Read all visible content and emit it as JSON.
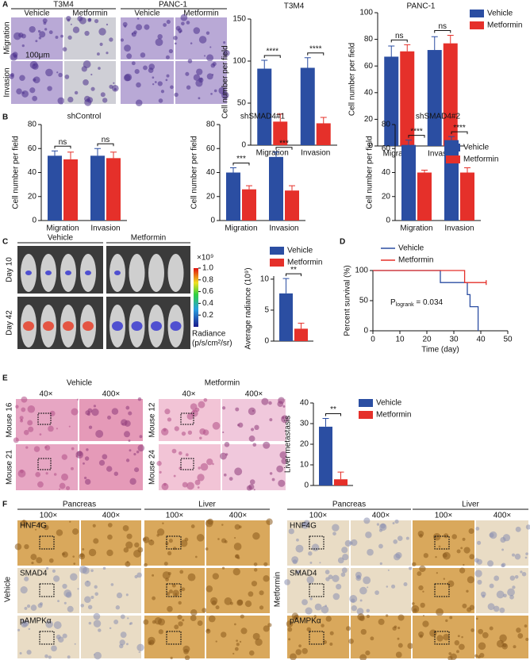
{
  "chart_data": [
    {
      "type": "bar",
      "title": "T3M4",
      "ylabel": "Cell number per field",
      "categories": [
        "Migration",
        "Invasion"
      ],
      "series": [
        {
          "name": "Vehicle",
          "color": "#2b4ea2",
          "values": [
            91,
            92
          ],
          "errors": [
            10,
            12
          ]
        },
        {
          "name": "Metformin",
          "color": "#e5302a",
          "values": [
            28,
            26
          ],
          "errors": [
            9,
            7
          ]
        }
      ],
      "ylim": [
        0,
        150
      ],
      "yticks": [
        0,
        50,
        100,
        150
      ],
      "significance": [
        "****",
        "****"
      ],
      "legend": false
    },
    {
      "type": "bar",
      "title": "PANC-1",
      "ylabel": "Cell number per field",
      "categories": [
        "Migration",
        "Invasion"
      ],
      "series": [
        {
          "name": "Vehicle",
          "color": "#2b4ea2",
          "values": [
            67,
            72
          ],
          "errors": [
            8,
            10
          ]
        },
        {
          "name": "Metformin",
          "color": "#e5302a",
          "values": [
            71,
            77
          ],
          "errors": [
            5,
            6
          ]
        }
      ],
      "ylim": [
        0,
        100
      ],
      "yticks": [
        0,
        20,
        40,
        60,
        80,
        100
      ],
      "significance": [
        "ns",
        "ns"
      ],
      "legend": true
    },
    {
      "type": "bar",
      "title": "shControl",
      "ylabel": "Cell number per field",
      "categories": [
        "Migration",
        "Invasion"
      ],
      "series": [
        {
          "name": "Vehicle",
          "color": "#2b4ea2",
          "values": [
            54,
            54
          ],
          "errors": [
            4,
            6
          ]
        },
        {
          "name": "Metformin",
          "color": "#e5302a",
          "values": [
            51,
            52
          ],
          "errors": [
            6,
            5
          ]
        }
      ],
      "ylim": [
        0,
        80
      ],
      "yticks": [
        0,
        20,
        40,
        60,
        80
      ],
      "significance": [
        "ns",
        "ns"
      ],
      "legend": false
    },
    {
      "type": "bar",
      "title": "shSMAD4#1",
      "ylabel": "Cell number per field",
      "categories": [
        "Migration",
        "Invasion"
      ],
      "series": [
        {
          "name": "Vehicle",
          "color": "#2b4ea2",
          "values": [
            40,
            53
          ],
          "errors": [
            4,
            4
          ]
        },
        {
          "name": "Metformin",
          "color": "#e5302a",
          "values": [
            26,
            25
          ],
          "errors": [
            3,
            4
          ]
        }
      ],
      "ylim": [
        0,
        80
      ],
      "yticks": [
        0,
        20,
        40,
        60,
        80
      ],
      "significance": [
        "***",
        "***"
      ],
      "legend": false
    },
    {
      "type": "bar",
      "title": "shSMAD4#2",
      "ylabel": "Cell number per field",
      "categories": [
        "Migration",
        "Invasion"
      ],
      "series": [
        {
          "name": "Vehicle",
          "color": "#2b4ea2",
          "values": [
            63,
            67
          ],
          "errors": [
            4,
            3
          ]
        },
        {
          "name": "Metformin",
          "color": "#e5302a",
          "values": [
            40,
            40
          ],
          "errors": [
            2,
            4
          ]
        }
      ],
      "ylim": [
        0,
        80
      ],
      "yticks": [
        0,
        20,
        40,
        60,
        80
      ],
      "significance": [
        "****",
        "****"
      ],
      "legend": true
    },
    {
      "type": "bar",
      "ylabel": "Average radiance (10⁹)",
      "categories": [
        null
      ],
      "series": [
        {
          "name": "Vehicle",
          "color": "#2b4ea2",
          "values": [
            7.7
          ],
          "errors": [
            2.4
          ]
        },
        {
          "name": "Metformin",
          "color": "#e5302a",
          "values": [
            2.0
          ],
          "errors": [
            0.9
          ]
        }
      ],
      "ylim": [
        0,
        10.5
      ],
      "yticks": [
        0,
        5,
        10
      ],
      "significance": [
        "**"
      ],
      "legend": true
    },
    {
      "type": "line",
      "xlabel": "Time (day)",
      "ylabel": "Percent survival (%)",
      "series": [
        {
          "name": "Vehicle",
          "color": "#2b4ea2",
          "x": [
            0,
            25,
            25,
            35,
            35,
            36,
            36,
            39,
            39
          ],
          "y": [
            100,
            100,
            80,
            80,
            60,
            60,
            40,
            40,
            0
          ]
        },
        {
          "name": "Metformin",
          "color": "#e5302a",
          "x": [
            0,
            34,
            34,
            42
          ],
          "y": [
            100,
            100,
            80,
            80
          ]
        }
      ],
      "xlim": [
        0,
        50
      ],
      "xticks": [
        0,
        10,
        20,
        30,
        40,
        50
      ],
      "ylim": [
        0,
        100
      ],
      "yticks": [
        0,
        50,
        100
      ],
      "annotation": [
        "P",
        "logrank",
        " = 0.034"
      ],
      "legend": true
    },
    {
      "type": "bar",
      "ylabel": "Liver metastasis",
      "categories": [
        null
      ],
      "series": [
        {
          "name": "Vehicle",
          "color": "#2b4ea2",
          "values": [
            28.5
          ],
          "errors": [
            4
          ]
        },
        {
          "name": "Metformin",
          "color": "#e5302a",
          "values": [
            3
          ],
          "errors": [
            3.5
          ]
        }
      ],
      "ylim": [
        0,
        40
      ],
      "yticks": [
        0,
        10,
        20,
        30,
        40
      ],
      "significance": [
        "**"
      ],
      "legend": true
    }
  ],
  "panel_labels": [
    "A",
    "B",
    "C",
    "D",
    "E",
    "F"
  ],
  "panel_a": {
    "cell_lines": [
      "T3M4",
      "PANC-1"
    ],
    "conditions": [
      "Vehicle",
      "Metformin"
    ],
    "rows": [
      "Migration",
      "Invasion"
    ],
    "scale_bar": "100μm"
  },
  "panel_c": {
    "groups": [
      "Vehicle",
      "Metformin"
    ],
    "rows": [
      "Day 10",
      "Day 42"
    ],
    "colorbar_unit": "×10⁹",
    "colorbar_ticks": [
      {
        "value": 1,
        "label": "1.0"
      },
      {
        "value": 0.8,
        "label": "0.8"
      },
      {
        "value": 0.6,
        "label": "0.6"
      },
      {
        "value": 0.4,
        "label": "0.4"
      },
      {
        "value": 0.2,
        "label": "0.2"
      }
    ],
    "colorbar_label": [
      "Radiance",
      "(p/s/cm²/sr)"
    ]
  },
  "panel_e": {
    "groups": [
      "Vehicle",
      "Metformin"
    ],
    "magnifications": [
      "40×",
      "400×"
    ],
    "mice": [
      [
        "Mouse 16",
        "Mouse 21"
      ],
      [
        "Mouse 12",
        "Mouse 24"
      ]
    ]
  },
  "panel_f": {
    "groups": [
      "Vehicle",
      "Metformin"
    ],
    "tissues": [
      "Pancreas",
      "Liver"
    ],
    "magnifications": [
      "100×",
      "400×"
    ],
    "stains": [
      "HNF4G",
      "SMAD4",
      "pAMPKα"
    ]
  }
}
